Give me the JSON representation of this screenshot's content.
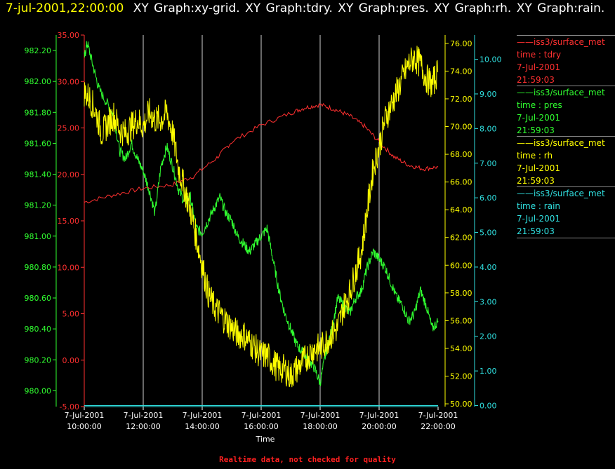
{
  "title_bar": {
    "timestamp": "7-jul-2001,22:00:00",
    "graphs_label": "XY Graph:xy-grid.  XY Graph:tdry.  XY Graph:pres.  XY Graph:rh.  XY Graph:rain."
  },
  "footer_note": "Realtime data, not checked for quality",
  "legend": [
    {
      "name": "iss3/surface_met",
      "field": "time : tdry",
      "date": "7-Jul-2001",
      "time": "21:59:03",
      "color": "#ff3030"
    },
    {
      "name": "iss3/surface_met",
      "field": "time : pres",
      "date": "7-Jul-2001",
      "time": "21:59:03",
      "color": "#30ff30"
    },
    {
      "name": "iss3/surface_met",
      "field": "time : rh",
      "date": "7-Jul-2001",
      "time": "21:59:03",
      "color": "#ffff00"
    },
    {
      "name": "iss3/surface_met",
      "field": "time : rain",
      "date": "7-Jul-2001",
      "time": "21:59:03",
      "color": "#30e0e0"
    }
  ],
  "chart_data": {
    "type": "line",
    "xlabel": "Time",
    "x_ticks": [
      {
        "date": "7-Jul-2001",
        "time": "10:00:00",
        "hour": 10
      },
      {
        "date": "7-Jul-2001",
        "time": "12:00:00",
        "hour": 12
      },
      {
        "date": "7-Jul-2001",
        "time": "14:00:00",
        "hour": 14
      },
      {
        "date": "7-Jul-2001",
        "time": "16:00:00",
        "hour": 16
      },
      {
        "date": "7-Jul-2001",
        "time": "18:00:00",
        "hour": 18
      },
      {
        "date": "7-Jul-2001",
        "time": "20:00:00",
        "hour": 20
      },
      {
        "date": "7-Jul-2001",
        "time": "22:00:00",
        "hour": 22
      }
    ],
    "x_range_hours": [
      10,
      22
    ],
    "grid": "vertical",
    "axes": {
      "tdry": {
        "color": "#ff3030",
        "range": [
          -5,
          35
        ],
        "ticks": [
          "-5.00",
          "0.00",
          "5.00",
          "10.00",
          "15.00",
          "20.00",
          "25.00",
          "30.00",
          "35.00"
        ]
      },
      "pres": {
        "color": "#30ff30",
        "range": [
          979.8975,
          982.3
        ],
        "ticks": [
          "980.00",
          "980.20",
          "980.40",
          "980.60",
          "980.80",
          "981.00",
          "981.20",
          "981.40",
          "981.60",
          "981.80",
          "982.00",
          "982.20"
        ]
      },
      "rh": {
        "color": "#ffff00",
        "range": [
          49.8,
          76.6
        ],
        "ticks": [
          "50.00",
          "52.00",
          "54.00",
          "56.00",
          "58.00",
          "60.00",
          "62.00",
          "64.00",
          "66.00",
          "68.00",
          "70.00",
          "72.00",
          "74.00",
          "76.00"
        ]
      },
      "rain": {
        "color": "#30e0e0",
        "range": [
          -0.03,
          10.7
        ],
        "ticks": [
          "0.00",
          "1.00",
          "2.00",
          "3.00",
          "4.00",
          "5.00",
          "6.00",
          "7.00",
          "8.00",
          "9.00",
          "10.00"
        ]
      }
    },
    "series": [
      {
        "name": "tdry",
        "color": "#ff3030",
        "x": [
          10,
          11,
          12,
          13,
          13.7,
          14.5,
          15,
          16,
          17,
          17.5,
          18,
          18.5,
          19,
          19.5,
          20,
          20.5,
          21,
          21.5,
          22
        ],
        "y": [
          17.0,
          17.8,
          18.5,
          18.9,
          19.8,
          21.8,
          23.5,
          25.3,
          26.6,
          27.2,
          27.5,
          27.0,
          26.3,
          25.2,
          23.5,
          21.9,
          21.0,
          20.6,
          20.8
        ]
      },
      {
        "name": "pres",
        "color": "#30ff30",
        "x": [
          10,
          10.1,
          10.3,
          10.5,
          10.8,
          11,
          11.2,
          11.4,
          11.6,
          11.8,
          12,
          12.2,
          12.4,
          12.6,
          12.8,
          13,
          13.2,
          13.4,
          13.6,
          13.8,
          14,
          14.2,
          14.4,
          14.6,
          14.8,
          15,
          15.2,
          15.4,
          15.6,
          15.8,
          16,
          16.2,
          16.4,
          16.6,
          16.8,
          17,
          17.2,
          17.4,
          17.6,
          17.8,
          18,
          18.2,
          18.4,
          18.6,
          18.8,
          19,
          19.2,
          19.4,
          19.6,
          19.8,
          20,
          20.2,
          20.4,
          20.6,
          20.8,
          21,
          21.2,
          21.4,
          21.6,
          21.8,
          22
        ],
        "y": [
          982.15,
          982.25,
          982.1,
          981.95,
          981.85,
          981.78,
          981.55,
          981.5,
          981.6,
          981.5,
          981.42,
          981.3,
          981.15,
          981.45,
          981.58,
          981.45,
          981.3,
          981.22,
          981.25,
          981.05,
          981.02,
          981.1,
          981.18,
          981.25,
          981.15,
          981.1,
          981.0,
          980.95,
          980.9,
          980.95,
          981.0,
          981.05,
          980.85,
          980.65,
          980.5,
          980.4,
          980.3,
          980.25,
          980.2,
          980.15,
          980.05,
          980.25,
          980.4,
          980.6,
          980.55,
          980.5,
          980.6,
          980.65,
          980.8,
          980.9,
          980.85,
          980.8,
          980.7,
          980.6,
          980.55,
          980.45,
          980.5,
          980.65,
          980.55,
          980.4,
          980.45
        ]
      },
      {
        "name": "rh",
        "color": "#ffff00",
        "x": [
          10,
          10.2,
          10.4,
          10.6,
          10.8,
          11,
          11.2,
          11.4,
          11.6,
          11.8,
          12,
          12.2,
          12.4,
          12.6,
          12.8,
          13,
          13.2,
          13.4,
          13.6,
          13.8,
          14,
          14.2,
          14.4,
          14.6,
          14.8,
          15,
          15.2,
          15.4,
          15.6,
          15.8,
          16,
          16.2,
          16.4,
          16.6,
          16.8,
          17,
          17.2,
          17.4,
          17.6,
          17.8,
          18,
          18.2,
          18.4,
          18.6,
          18.8,
          19,
          19.2,
          19.4,
          19.6,
          19.8,
          20,
          20.2,
          20.4,
          20.6,
          20.8,
          21,
          21.2,
          21.4,
          21.6,
          21.8,
          22
        ],
        "y": [
          72.5,
          72.0,
          71.0,
          69.5,
          70.2,
          70.8,
          69.8,
          69.5,
          70.0,
          70.5,
          70.0,
          71.0,
          70.5,
          70.5,
          71.0,
          69.5,
          67.0,
          65.5,
          64.0,
          62.0,
          60.0,
          58.0,
          57.0,
          56.5,
          56.0,
          55.5,
          55.0,
          55.0,
          54.5,
          54.0,
          53.5,
          53.5,
          53.0,
          52.5,
          52.5,
          52.0,
          52.5,
          53.0,
          53.5,
          54.0,
          54.0,
          54.5,
          55.0,
          55.5,
          57.0,
          58.0,
          59.5,
          61.0,
          64.0,
          67.0,
          68.5,
          70.5,
          71.5,
          72.5,
          73.5,
          74.5,
          75.0,
          74.5,
          73.5,
          73.0,
          74.0
        ]
      },
      {
        "name": "rain",
        "color": "#30e0e0",
        "x": [
          10,
          22
        ],
        "y": [
          0.0,
          0.0
        ]
      }
    ]
  }
}
